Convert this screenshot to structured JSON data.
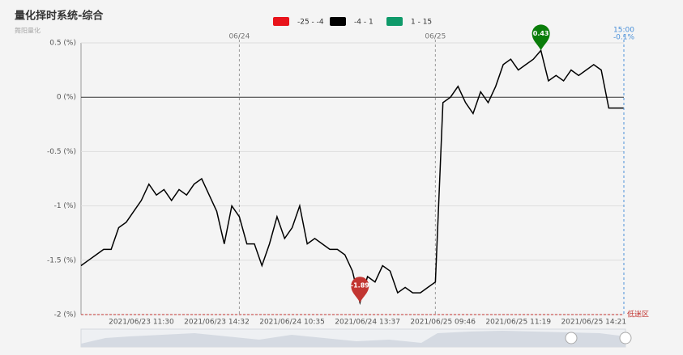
{
  "chart_data": {
    "type": "line",
    "title": "量化择时系统-综合",
    "subtitle": "舞阳量化",
    "legend": [
      {
        "label": "-25 - -4",
        "min": -25,
        "max": -4,
        "color": "#e8141b"
      },
      {
        "label": "-4 - 1",
        "min": -4,
        "max": 1,
        "color": "#000000"
      },
      {
        "label": "1 - 15",
        "min": 1,
        "max": 15,
        "color": "#0f9a6a"
      }
    ],
    "categories": [
      null,
      null,
      null,
      null,
      null,
      null,
      null,
      null,
      "2021/06/23 11:30",
      null,
      null,
      null,
      null,
      null,
      null,
      null,
      null,
      null,
      "2021/06/23 14:32",
      null,
      null,
      null,
      null,
      null,
      null,
      null,
      null,
      null,
      "2021/06/24 10:35",
      null,
      null,
      null,
      null,
      null,
      null,
      null,
      null,
      null,
      "2021/06/24 13:37",
      null,
      null,
      null,
      null,
      null,
      null,
      null,
      null,
      null,
      "2021/06/25 09:46",
      null,
      null,
      null,
      null,
      null,
      null,
      null,
      null,
      null,
      "2021/06/25 11:19",
      null,
      null,
      null,
      null,
      null,
      null,
      null,
      null,
      null,
      "2021/06/25 14:21",
      null,
      null,
      null,
      null
    ],
    "series": [
      {
        "values": [
          -1.55,
          -1.5,
          -1.45,
          -1.4,
          -1.4,
          -1.2,
          -1.15,
          -1.05,
          -0.95,
          -0.8,
          -0.9,
          -0.85,
          -0.95,
          -0.85,
          -0.9,
          -0.8,
          -0.75,
          -0.9,
          -1.05,
          -1.35,
          -1.0,
          -1.1,
          -1.35,
          -1.35,
          -1.55,
          -1.35,
          -1.1,
          -1.3,
          -1.2,
          -1.0,
          -1.35,
          -1.3,
          -1.35,
          -1.4,
          -1.4,
          -1.45,
          -1.6,
          -1.89,
          -1.65,
          -1.7,
          -1.55,
          -1.6,
          -1.8,
          -1.75,
          -1.8,
          -1.8,
          -1.75,
          -1.7,
          -0.05,
          0.0,
          0.1,
          -0.05,
          -0.15,
          0.05,
          -0.05,
          0.1,
          0.3,
          0.35,
          0.25,
          0.3,
          0.35,
          0.43,
          0.15,
          0.2,
          0.15,
          0.25,
          0.2,
          0.25,
          0.3,
          0.25,
          -0.1,
          -0.1,
          -0.1
        ]
      }
    ],
    "max_marker": {
      "index": 61,
      "color": "#0a7d0a"
    },
    "min_marker": {
      "index": 37,
      "color": "#c23531"
    },
    "day_lines": [
      {
        "label": "06/24",
        "at": 21
      },
      {
        "label": "06/25",
        "at": 47
      }
    ],
    "end_line": {
      "label": "15:00",
      "at": 72,
      "value_label": "-0.1%",
      "color": "#4a90d9"
    },
    "threshold": {
      "value": -2,
      "label": "低迷区",
      "color": "#c23531"
    },
    "ylim": [
      -2,
      0.5
    ],
    "yticks": [
      {
        "value": -2,
        "label": "-2 (%)"
      },
      {
        "value": -1.5,
        "label": "-1.5 (%)"
      },
      {
        "value": -1,
        "label": "-1 (%)"
      },
      {
        "value": -0.5,
        "label": "-0.5 (%)"
      },
      {
        "value": 0,
        "label": "0 (%)"
      },
      {
        "value": 0.5,
        "label": "0.5 (%)"
      }
    ],
    "grid": true
  }
}
